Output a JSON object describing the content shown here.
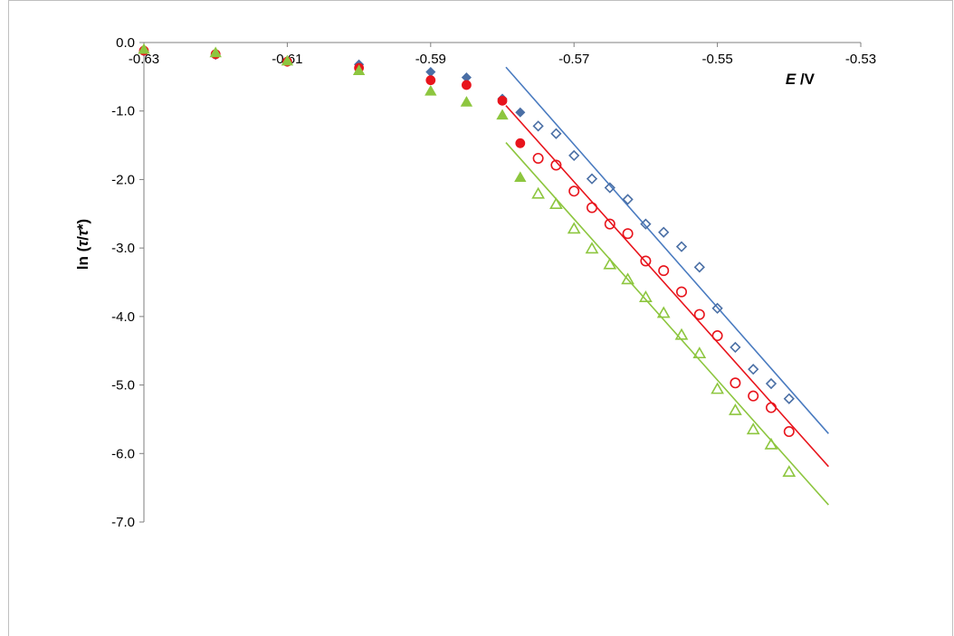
{
  "chart_data": {
    "type": "scatter",
    "xlabel": "E /V",
    "ylabel": "ln (τ/τ*)",
    "xlim": [
      -0.63,
      -0.53
    ],
    "ylim": [
      -7.0,
      0.0
    ],
    "xticks": [
      "-0.63",
      "-0.61",
      "-0.59",
      "-0.57",
      "-0.55",
      "-0.53"
    ],
    "yticks": [
      "0.0",
      "-1.0",
      "-2.0",
      "-3.0",
      "-4.0",
      "-5.0",
      "-6.0",
      "-7.0"
    ],
    "grid": false,
    "legend": "none",
    "series": [
      {
        "marker": "diamond",
        "fill": "filled",
        "color": "#4a6fa5",
        "x": [
          -0.63,
          -0.62,
          -0.61,
          -0.6,
          -0.59,
          -0.585,
          -0.58,
          -0.5775
        ],
        "y": [
          -0.13,
          -0.18,
          -0.28,
          -0.32,
          -0.43,
          -0.51,
          -0.82,
          -1.02
        ]
      },
      {
        "marker": "diamond",
        "fill": "open",
        "color": "#4a6fa5",
        "x": [
          -0.575,
          -0.5725,
          -0.57,
          -0.5675,
          -0.565,
          -0.5625,
          -0.56,
          -0.5575,
          -0.555,
          -0.5525,
          -0.55,
          -0.5475,
          -0.545,
          -0.5425,
          -0.54
        ],
        "y": [
          -1.22,
          -1.33,
          -1.65,
          -1.99,
          -2.12,
          -2.29,
          -2.65,
          -2.77,
          -2.98,
          -3.28,
          -3.88,
          -4.45,
          -4.77,
          -4.98,
          -5.2
        ]
      },
      {
        "marker": "circle",
        "fill": "filled",
        "color": "#e8141c",
        "x": [
          -0.63,
          -0.62,
          -0.61,
          -0.6,
          -0.59,
          -0.585,
          -0.58,
          -0.5775
        ],
        "y": [
          -0.12,
          -0.17,
          -0.28,
          -0.37,
          -0.55,
          -0.62,
          -0.85,
          -1.47
        ]
      },
      {
        "marker": "circle",
        "fill": "open",
        "color": "#e8141c",
        "x": [
          -0.575,
          -0.5725,
          -0.57,
          -0.5675,
          -0.565,
          -0.5625,
          -0.56,
          -0.5575,
          -0.555,
          -0.5525,
          -0.55,
          -0.5475,
          -0.545,
          -0.5425,
          -0.54
        ],
        "y": [
          -1.69,
          -1.79,
          -2.17,
          -2.41,
          -2.65,
          -2.79,
          -3.19,
          -3.33,
          -3.64,
          -3.97,
          -4.28,
          -4.97,
          -5.16,
          -5.33,
          -5.68
        ]
      },
      {
        "marker": "triangle",
        "fill": "filled",
        "color": "#8dc63f",
        "x": [
          -0.63,
          -0.62,
          -0.61,
          -0.6,
          -0.59,
          -0.585,
          -0.58,
          -0.5775
        ],
        "y": [
          -0.1,
          -0.15,
          -0.27,
          -0.41,
          -0.71,
          -0.87,
          -1.06,
          -1.97
        ]
      },
      {
        "marker": "triangle",
        "fill": "open",
        "color": "#8dc63f",
        "x": [
          -0.575,
          -0.5725,
          -0.57,
          -0.5675,
          -0.565,
          -0.5625,
          -0.56,
          -0.5575,
          -0.555,
          -0.5525,
          -0.55,
          -0.5475,
          -0.545,
          -0.5425,
          -0.54
        ],
        "y": [
          -2.21,
          -2.36,
          -2.72,
          -3.01,
          -3.24,
          -3.46,
          -3.72,
          -3.95,
          -4.27,
          -4.54,
          -5.06,
          -5.37,
          -5.65,
          -5.87,
          -6.27
        ]
      }
    ],
    "trendlines": [
      {
        "color": "#4a7bc0",
        "x": [
          -0.5795,
          -0.5345
        ],
        "y": [
          -0.36,
          -5.71
        ]
      },
      {
        "color": "#e8141c",
        "x": [
          -0.5795,
          -0.5345
        ],
        "y": [
          -0.92,
          -6.19
        ]
      },
      {
        "color": "#8dc63f",
        "x": [
          -0.5795,
          -0.5345
        ],
        "y": [
          -1.46,
          -6.75
        ]
      }
    ]
  }
}
